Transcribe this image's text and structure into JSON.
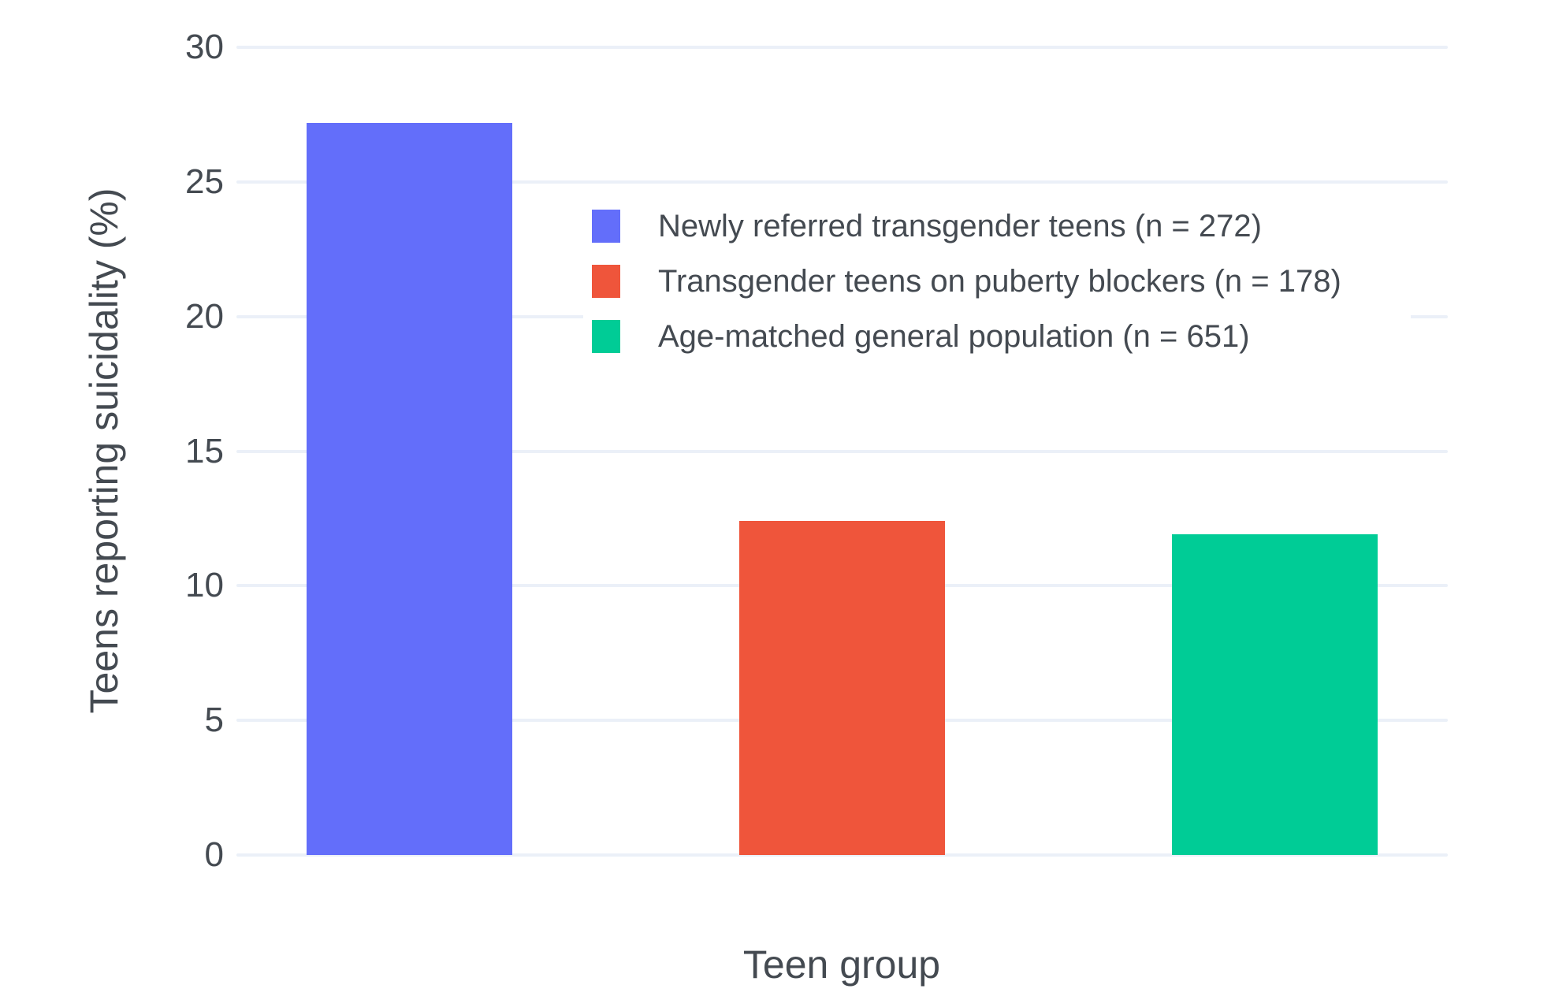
{
  "chart_data": {
    "type": "bar",
    "title": "",
    "xlabel": "Teen group",
    "ylabel": "Teens reporting suicidality (%)",
    "ylim": [
      0,
      30
    ],
    "yticks": [
      30,
      25,
      20,
      15,
      10,
      5,
      0
    ],
    "grid": true,
    "legend_position": "inside-upper-middle",
    "categories": [
      "Newly referred transgender teens (n = 272)",
      "Transgender teens on puberty blockers (n = 178)",
      "Age-matched general population (n = 651)"
    ],
    "values": [
      27.2,
      12.4,
      11.9
    ],
    "colors": [
      "#636EFA",
      "#EF553B",
      "#00CC96"
    ],
    "background_color": "#FFFFFF",
    "gridline_color": "#EBF0F8",
    "text_color": "#444a51"
  }
}
